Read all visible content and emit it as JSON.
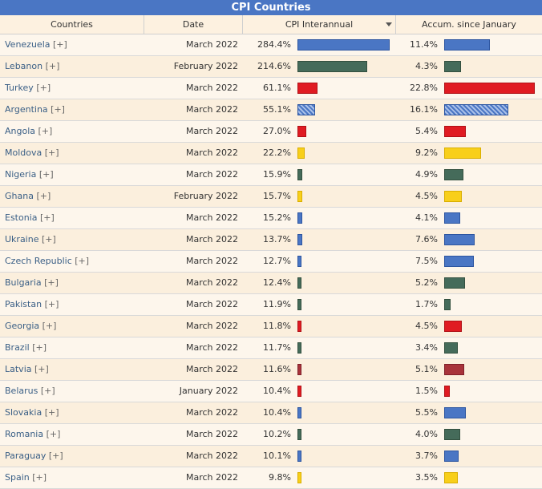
{
  "title": "CPI Countries",
  "headers": {
    "country": "Countries",
    "date": "Date",
    "cpi": "CPI Interannual",
    "accum": "Accum. since January"
  },
  "sort": {
    "column": "cpi",
    "direction": "descending",
    "icon": "sort-down-icon"
  },
  "bar_scale": {
    "cpi_max": 284.4,
    "accum_max": 22.8
  },
  "colors": {
    "blue": "#4a76c4",
    "green": "#456b5a",
    "red": "#e01b22",
    "yellow": "#f8cf1a",
    "darkred": "#a8333a",
    "hatch": "#4a76c4",
    "title_bar": "#4a76c4"
  },
  "rows": [
    {
      "country": "Venezuela",
      "more": "[+]",
      "date": "March 2022",
      "cpi": "284.4%",
      "cpi_value": 284.4,
      "accum": "11.4%",
      "accum_value": 11.4,
      "color": "blue"
    },
    {
      "country": "Lebanon",
      "more": "[+]",
      "date": "February 2022",
      "cpi": "214.6%",
      "cpi_value": 214.6,
      "accum": "4.3%",
      "accum_value": 4.3,
      "color": "green"
    },
    {
      "country": "Turkey",
      "more": "[+]",
      "date": "March 2022",
      "cpi": "61.1%",
      "cpi_value": 61.1,
      "accum": "22.8%",
      "accum_value": 22.8,
      "color": "red"
    },
    {
      "country": "Argentina",
      "more": "[+]",
      "date": "March 2022",
      "cpi": "55.1%",
      "cpi_value": 55.1,
      "accum": "16.1%",
      "accum_value": 16.1,
      "color": "hatch"
    },
    {
      "country": "Angola",
      "more": "[+]",
      "date": "March 2022",
      "cpi": "27.0%",
      "cpi_value": 27.0,
      "accum": "5.4%",
      "accum_value": 5.4,
      "color": "red"
    },
    {
      "country": "Moldova",
      "more": "[+]",
      "date": "March 2022",
      "cpi": "22.2%",
      "cpi_value": 22.2,
      "accum": "9.2%",
      "accum_value": 9.2,
      "color": "yellow"
    },
    {
      "country": "Nigeria",
      "more": "[+]",
      "date": "March 2022",
      "cpi": "15.9%",
      "cpi_value": 15.9,
      "accum": "4.9%",
      "accum_value": 4.9,
      "color": "green"
    },
    {
      "country": "Ghana",
      "more": "[+]",
      "date": "February 2022",
      "cpi": "15.7%",
      "cpi_value": 15.7,
      "accum": "4.5%",
      "accum_value": 4.5,
      "color": "yellow"
    },
    {
      "country": "Estonia",
      "more": "[+]",
      "date": "March 2022",
      "cpi": "15.2%",
      "cpi_value": 15.2,
      "accum": "4.1%",
      "accum_value": 4.1,
      "color": "blue"
    },
    {
      "country": "Ukraine",
      "more": "[+]",
      "date": "March 2022",
      "cpi": "13.7%",
      "cpi_value": 13.7,
      "accum": "7.6%",
      "accum_value": 7.6,
      "color": "blue"
    },
    {
      "country": "Czech Republic",
      "more": "[+]",
      "date": "March 2022",
      "cpi": "12.7%",
      "cpi_value": 12.7,
      "accum": "7.5%",
      "accum_value": 7.5,
      "color": "blue"
    },
    {
      "country": "Bulgaria",
      "more": "[+]",
      "date": "March 2022",
      "cpi": "12.4%",
      "cpi_value": 12.4,
      "accum": "5.2%",
      "accum_value": 5.2,
      "color": "green"
    },
    {
      "country": "Pakistan",
      "more": "[+]",
      "date": "March 2022",
      "cpi": "11.9%",
      "cpi_value": 11.9,
      "accum": "1.7%",
      "accum_value": 1.7,
      "color": "green"
    },
    {
      "country": "Georgia",
      "more": "[+]",
      "date": "March 2022",
      "cpi": "11.8%",
      "cpi_value": 11.8,
      "accum": "4.5%",
      "accum_value": 4.5,
      "color": "red"
    },
    {
      "country": "Brazil",
      "more": "[+]",
      "date": "March 2022",
      "cpi": "11.7%",
      "cpi_value": 11.7,
      "accum": "3.4%",
      "accum_value": 3.4,
      "color": "green"
    },
    {
      "country": "Latvia",
      "more": "[+]",
      "date": "March 2022",
      "cpi": "11.6%",
      "cpi_value": 11.6,
      "accum": "5.1%",
      "accum_value": 5.1,
      "color": "darkred"
    },
    {
      "country": "Belarus",
      "more": "[+]",
      "date": "January 2022",
      "cpi": "10.4%",
      "cpi_value": 10.4,
      "accum": "1.5%",
      "accum_value": 1.5,
      "color": "red"
    },
    {
      "country": "Slovakia",
      "more": "[+]",
      "date": "March 2022",
      "cpi": "10.4%",
      "cpi_value": 10.4,
      "accum": "5.5%",
      "accum_value": 5.5,
      "color": "blue"
    },
    {
      "country": "Romania",
      "more": "[+]",
      "date": "March 2022",
      "cpi": "10.2%",
      "cpi_value": 10.2,
      "accum": "4.0%",
      "accum_value": 4.0,
      "color": "green"
    },
    {
      "country": "Paraguay",
      "more": "[+]",
      "date": "March 2022",
      "cpi": "10.1%",
      "cpi_value": 10.1,
      "accum": "3.7%",
      "accum_value": 3.7,
      "color": "blue"
    },
    {
      "country": "Spain",
      "more": "[+]",
      "date": "March 2022",
      "cpi": "9.8%",
      "cpi_value": 9.8,
      "accum": "3.5%",
      "accum_value": 3.5,
      "color": "yellow"
    }
  ]
}
